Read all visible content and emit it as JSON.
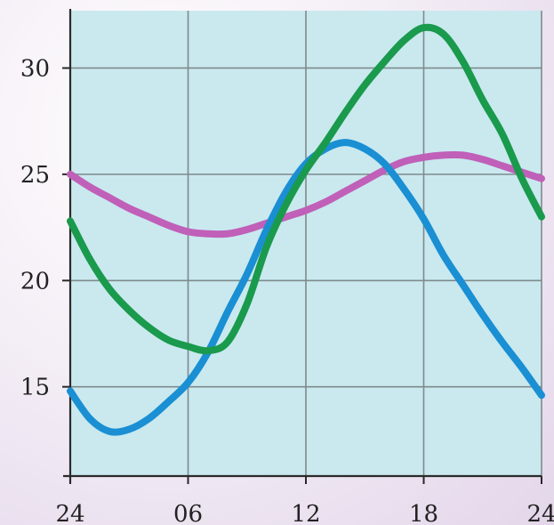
{
  "chart_data": {
    "type": "line",
    "x_ticks": [
      "24",
      "06",
      "12",
      "18",
      "24"
    ],
    "x_tick_values": [
      0,
      6,
      12,
      18,
      24
    ],
    "y_ticks": [
      "15",
      "20",
      "25",
      "30"
    ],
    "y_tick_values": [
      15,
      20,
      25,
      30
    ],
    "xlim": [
      0,
      24
    ],
    "ylim": [
      10.8,
      32.7
    ],
    "grid": true,
    "background_color": "#c9e9ef",
    "series": [
      {
        "color": "#1a9a4c",
        "x": [
          0,
          1,
          2,
          3,
          4,
          5,
          6,
          7,
          8,
          9,
          10,
          11,
          12,
          13,
          14,
          15,
          16,
          17,
          18,
          19,
          20,
          21,
          22,
          23,
          24
        ],
        "y": [
          22.8,
          21.0,
          19.6,
          18.6,
          17.8,
          17.2,
          16.9,
          16.7,
          17.1,
          18.9,
          21.6,
          23.6,
          25.2,
          26.5,
          27.9,
          29.2,
          30.3,
          31.3,
          31.9,
          31.6,
          30.3,
          28.5,
          26.9,
          24.8,
          23.0
        ]
      },
      {
        "color": "#1a8fd3",
        "x": [
          0,
          1,
          2,
          3,
          4,
          5,
          6,
          7,
          8,
          9,
          10,
          11,
          12,
          13,
          14,
          15,
          16,
          17,
          18,
          19,
          20,
          21,
          22,
          23,
          24
        ],
        "y": [
          14.8,
          13.5,
          12.9,
          13.0,
          13.5,
          14.3,
          15.2,
          16.6,
          18.5,
          20.3,
          22.4,
          24.2,
          25.5,
          26.2,
          26.5,
          26.2,
          25.5,
          24.3,
          22.9,
          21.2,
          19.8,
          18.4,
          17.1,
          15.9,
          14.6
        ]
      },
      {
        "color": "#c060b8",
        "x": [
          0,
          1,
          2,
          3,
          4,
          5,
          6,
          7,
          8,
          9,
          10,
          11,
          12,
          13,
          14,
          15,
          16,
          17,
          18,
          19,
          20,
          21,
          22,
          23,
          24
        ],
        "y": [
          25.0,
          24.4,
          23.9,
          23.4,
          23.0,
          22.6,
          22.3,
          22.2,
          22.2,
          22.4,
          22.7,
          23.0,
          23.3,
          23.7,
          24.2,
          24.7,
          25.2,
          25.6,
          25.8,
          25.9,
          25.9,
          25.7,
          25.4,
          25.1,
          24.8
        ]
      }
    ]
  }
}
